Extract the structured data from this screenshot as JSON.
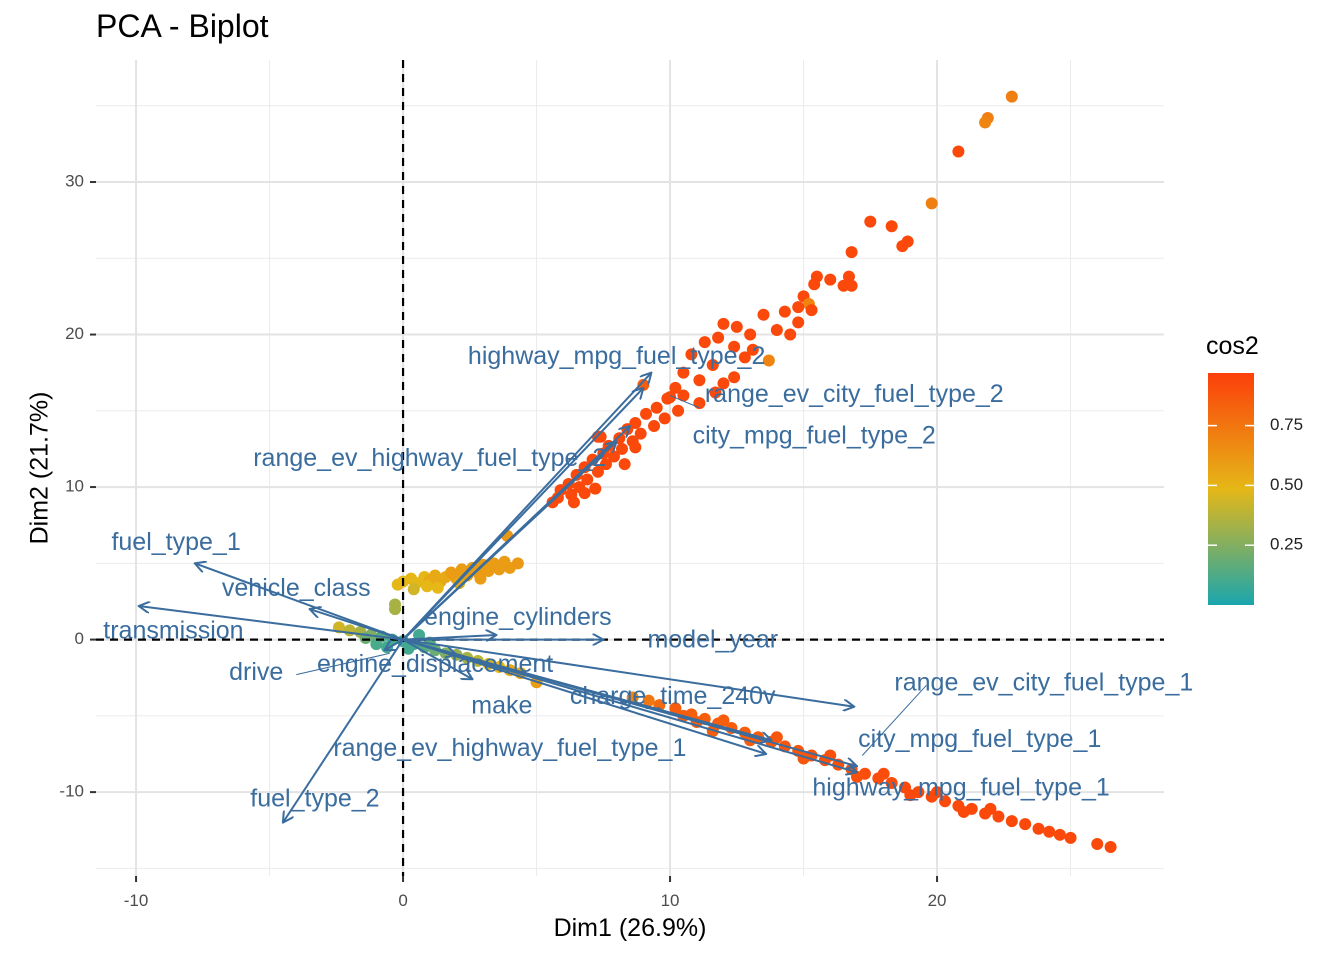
{
  "chart_data": {
    "type": "scatter",
    "title": "PCA - Biplot",
    "xlabel": "Dim1 (26.9%)",
    "ylabel": "Dim2 (21.7%)",
    "xlim": [
      -11.5,
      28.5
    ],
    "ylim": [
      -15.5,
      38.0
    ],
    "xticks": [
      -10,
      0,
      10,
      20
    ],
    "yticks": [
      -10,
      0,
      10,
      20,
      30
    ],
    "grid": true,
    "legend": {
      "title": "cos2",
      "position": "right",
      "ticks": [
        0.25,
        0.5,
        0.75
      ],
      "tick_labels": [
        "0.25",
        "0.50",
        "0.75"
      ],
      "range": [
        0.0,
        0.97
      ],
      "colors": [
        "#1aa6ae",
        "#e5b717",
        "#fc3f0a"
      ]
    },
    "reference_lines": {
      "x": 0,
      "y": 0,
      "style": "dashed"
    },
    "arrow_color": "#3a6d9e",
    "variables": [
      {
        "name": "highway_mpg_fuel_type_2",
        "x": 9.3,
        "y": 17.5,
        "label_x": 8.0,
        "label_y": 18.5
      },
      {
        "name": "range_ev_city_fuel_type_2",
        "x": 9.0,
        "y": 16.5,
        "label_x": 16.9,
        "label_y": 16.0
      },
      {
        "name": "city_mpg_fuel_type_2",
        "x": 8.5,
        "y": 14.0,
        "label_x": 15.4,
        "label_y": 13.3
      },
      {
        "name": "range_ev_highway_fuel_type_2",
        "x": 8.0,
        "y": 13.0,
        "label_x": 1.0,
        "label_y": 11.8
      },
      {
        "name": "fuel_type_1",
        "x": -7.8,
        "y": 5.0,
        "label_x": -8.5,
        "label_y": 6.3
      },
      {
        "name": "vehicle_class",
        "x": -3.5,
        "y": 2.0,
        "label_x": -4.0,
        "label_y": 3.3
      },
      {
        "name": "transmission",
        "x": -9.9,
        "y": 2.2,
        "label_x": -8.6,
        "label_y": 0.5
      },
      {
        "name": "engine_cylinders",
        "x": 3.5,
        "y": 0.3,
        "label_x": 4.3,
        "label_y": 1.4
      },
      {
        "name": "model_year",
        "x": 7.5,
        "y": 0.0,
        "label_x": 11.6,
        "label_y": -0.1
      },
      {
        "name": "drive",
        "x": -0.7,
        "y": -0.7,
        "label_x": -5.5,
        "label_y": -2.2
      },
      {
        "name": "engine_displacement",
        "x": 2.0,
        "y": -1.0,
        "label_x": 1.2,
        "label_y": -1.7
      },
      {
        "name": "make",
        "x": 2.6,
        "y": -2.6,
        "label_x": 3.7,
        "label_y": -4.4
      },
      {
        "name": "charge_time_240v",
        "x": 13.8,
        "y": -6.6,
        "label_x": 10.1,
        "label_y": -3.8
      },
      {
        "name": "range_ev_city_fuel_type_1",
        "x": 16.9,
        "y": -4.4,
        "label_x": 24.0,
        "label_y": -2.9
      },
      {
        "name": "city_mpg_fuel_type_1",
        "x": 17.0,
        "y": -8.3,
        "label_x": 21.6,
        "label_y": -6.6
      },
      {
        "name": "range_ev_highway_fuel_type_1",
        "x": 13.6,
        "y": -7.5,
        "label_x": 4.0,
        "label_y": -7.2
      },
      {
        "name": "highway_mpg_fuel_type_1",
        "x": 17.0,
        "y": -8.7,
        "label_x": 20.9,
        "label_y": -9.8
      },
      {
        "name": "fuel_type_2",
        "x": -4.5,
        "y": -12.0,
        "label_x": -3.3,
        "label_y": -10.5
      }
    ],
    "leader_lines": [
      {
        "name": "range_ev_city_fuel_type_2",
        "from": [
          11.1,
          15.2
        ],
        "to": [
          10.0,
          16.0
        ]
      },
      {
        "name": "drive",
        "from": [
          -4.0,
          -2.3
        ],
        "to": [
          -0.5,
          -0.9
        ]
      },
      {
        "name": "range_ev_city_fuel_type_1",
        "from": [
          19.6,
          -3.0
        ],
        "to": [
          17.2,
          -7.6
        ]
      }
    ],
    "series": [
      {
        "cluster": "upper-arm",
        "points": [
          [
            22.8,
            35.6,
            0.72
          ],
          [
            21.9,
            34.2,
            0.72
          ],
          [
            21.8,
            33.9,
            0.7
          ],
          [
            20.8,
            32.0,
            0.93
          ],
          [
            19.8,
            28.6,
            0.72
          ],
          [
            17.5,
            27.4,
            0.93
          ],
          [
            18.3,
            27.1,
            0.93
          ],
          [
            18.9,
            26.1,
            0.93
          ],
          [
            18.7,
            25.8,
            0.93
          ],
          [
            16.8,
            25.4,
            0.93
          ],
          [
            15.5,
            23.8,
            0.93
          ],
          [
            16.0,
            23.6,
            0.93
          ],
          [
            16.7,
            23.8,
            0.93
          ],
          [
            15.4,
            23.3,
            0.93
          ],
          [
            16.5,
            23.2,
            0.93
          ],
          [
            16.8,
            23.2,
            0.93
          ],
          [
            15.0,
            22.5,
            0.93
          ],
          [
            15.2,
            22.0,
            0.7
          ],
          [
            14.8,
            21.8,
            0.93
          ],
          [
            14.3,
            21.5,
            0.93
          ],
          [
            15.3,
            21.6,
            0.93
          ],
          [
            13.5,
            21.3,
            0.93
          ],
          [
            14.8,
            20.8,
            0.93
          ],
          [
            12.0,
            20.7,
            0.93
          ],
          [
            12.5,
            20.5,
            0.93
          ],
          [
            14.0,
            20.3,
            0.93
          ],
          [
            13.0,
            20.0,
            0.93
          ],
          [
            14.5,
            20.0,
            0.93
          ],
          [
            11.8,
            19.8,
            0.93
          ],
          [
            11.3,
            19.5,
            0.93
          ],
          [
            12.4,
            19.2,
            0.93
          ],
          [
            13.1,
            19.0,
            0.93
          ],
          [
            10.8,
            18.7,
            0.93
          ],
          [
            12.8,
            18.5,
            0.93
          ],
          [
            13.7,
            18.3,
            0.7
          ],
          [
            11.6,
            18.0,
            0.93
          ],
          [
            10.5,
            17.5,
            0.93
          ],
          [
            12.4,
            17.2,
            0.93
          ],
          [
            11.1,
            17.0,
            0.93
          ],
          [
            12.0,
            16.8,
            0.93
          ],
          [
            10.2,
            16.5,
            0.93
          ],
          [
            11.7,
            16.2,
            0.93
          ],
          [
            10.5,
            16.0,
            0.93
          ],
          [
            9.9,
            15.8,
            0.93
          ],
          [
            11.1,
            15.5,
            0.93
          ],
          [
            9.5,
            15.2,
            0.93
          ],
          [
            10.3,
            15.0,
            0.93
          ],
          [
            9.1,
            14.8,
            0.93
          ],
          [
            9.8,
            14.5,
            0.93
          ],
          [
            8.7,
            14.2,
            0.93
          ],
          [
            9.4,
            14.0,
            0.93
          ],
          [
            8.4,
            13.8,
            0.93
          ],
          [
            8.9,
            13.5,
            0.93
          ],
          [
            8.1,
            13.2,
            0.93
          ],
          [
            8.6,
            13.0,
            0.93
          ],
          [
            7.3,
            13.3,
            0.93
          ],
          [
            7.7,
            12.7,
            0.93
          ],
          [
            8.2,
            12.5,
            0.93
          ],
          [
            7.5,
            12.2,
            0.93
          ],
          [
            7.9,
            12.0,
            0.93
          ],
          [
            7.1,
            11.8,
            0.93
          ],
          [
            7.6,
            11.5,
            0.93
          ],
          [
            6.8,
            11.3,
            0.93
          ],
          [
            7.3,
            11.0,
            0.93
          ],
          [
            6.5,
            10.8,
            0.93
          ],
          [
            6.9,
            10.5,
            0.93
          ],
          [
            6.2,
            10.2,
            0.93
          ],
          [
            6.6,
            10.0,
            0.93
          ],
          [
            5.9,
            9.8,
            0.93
          ],
          [
            6.3,
            9.5,
            0.93
          ],
          [
            5.8,
            9.3,
            0.93
          ],
          [
            6.8,
            9.6,
            0.93
          ],
          [
            5.6,
            9.0,
            0.93
          ],
          [
            6.4,
            9.0,
            0.93
          ],
          [
            7.2,
            9.9,
            0.93
          ],
          [
            8.3,
            11.5,
            0.93
          ],
          [
            8.7,
            12.6,
            0.93
          ],
          [
            10.0,
            15.9,
            0.93
          ],
          [
            9.0,
            16.7,
            0.85
          ],
          [
            7.4,
            13.3,
            0.93
          ]
        ]
      },
      {
        "cluster": "center-cluster",
        "points": [
          [
            -0.2,
            3.6,
            0.5
          ],
          [
            0.0,
            3.8,
            0.5
          ],
          [
            0.3,
            4.0,
            0.5
          ],
          [
            0.5,
            3.7,
            0.5
          ],
          [
            0.8,
            4.1,
            0.5
          ],
          [
            1.0,
            3.9,
            0.55
          ],
          [
            1.2,
            4.2,
            0.55
          ],
          [
            1.4,
            3.8,
            0.55
          ],
          [
            1.6,
            4.1,
            0.55
          ],
          [
            1.8,
            4.4,
            0.6
          ],
          [
            2.0,
            4.0,
            0.6
          ],
          [
            2.2,
            4.6,
            0.6
          ],
          [
            2.4,
            4.2,
            0.6
          ],
          [
            2.6,
            4.7,
            0.6
          ],
          [
            2.8,
            4.4,
            0.6
          ],
          [
            3.0,
            4.9,
            0.6
          ],
          [
            3.2,
            4.5,
            0.6
          ],
          [
            3.4,
            5.0,
            0.6
          ],
          [
            3.6,
            4.6,
            0.6
          ],
          [
            3.8,
            5.1,
            0.6
          ],
          [
            4.0,
            4.7,
            0.6
          ],
          [
            4.3,
            5.0,
            0.62
          ],
          [
            3.9,
            6.8,
            0.62
          ],
          [
            0.4,
            3.3,
            0.45
          ],
          [
            0.9,
            3.5,
            0.5
          ],
          [
            -0.3,
            2.3,
            0.35
          ],
          [
            -0.3,
            2.0,
            0.35
          ],
          [
            1.3,
            3.4,
            0.5
          ],
          [
            2.1,
            3.7,
            0.55
          ],
          [
            2.9,
            4.0,
            0.6
          ]
        ]
      },
      {
        "cluster": "origin-cluster",
        "points": [
          [
            -2.4,
            0.8,
            0.45
          ],
          [
            -2.0,
            0.6,
            0.4
          ],
          [
            -1.6,
            0.5,
            0.35
          ],
          [
            -1.2,
            0.3,
            0.25
          ],
          [
            -0.8,
            0.2,
            0.15
          ],
          [
            -0.4,
            0.0,
            0.1
          ],
          [
            0.0,
            -0.1,
            0.08
          ],
          [
            0.4,
            -0.3,
            0.1
          ],
          [
            0.8,
            -0.5,
            0.15
          ],
          [
            1.2,
            -0.7,
            0.2
          ],
          [
            1.6,
            -0.9,
            0.25
          ],
          [
            2.0,
            -1.0,
            0.3
          ],
          [
            2.4,
            -1.2,
            0.35
          ],
          [
            2.8,
            -1.4,
            0.4
          ],
          [
            3.2,
            -1.6,
            0.45
          ],
          [
            3.6,
            -1.8,
            0.5
          ],
          [
            4.0,
            -2.0,
            0.55
          ],
          [
            4.4,
            -2.2,
            0.55
          ],
          [
            5.0,
            -2.8,
            0.6
          ],
          [
            -1.0,
            -0.3,
            0.12
          ],
          [
            -0.6,
            -0.5,
            0.1
          ],
          [
            0.2,
            -0.6,
            0.1
          ],
          [
            0.6,
            0.3,
            0.1
          ],
          [
            1.0,
            -0.2,
            0.15
          ],
          [
            -1.4,
            0.1,
            0.2
          ]
        ]
      },
      {
        "cluster": "lower-arm",
        "points": [
          [
            10.2,
            -4.5,
            0.85
          ],
          [
            10.8,
            -4.9,
            0.85
          ],
          [
            11.3,
            -5.2,
            0.85
          ],
          [
            11.8,
            -5.5,
            0.85
          ],
          [
            12.3,
            -5.8,
            0.85
          ],
          [
            12.8,
            -6.1,
            0.85
          ],
          [
            13.3,
            -6.4,
            0.85
          ],
          [
            13.8,
            -6.7,
            0.88
          ],
          [
            14.3,
            -7.0,
            0.88
          ],
          [
            14.8,
            -7.3,
            0.88
          ],
          [
            15.3,
            -7.6,
            0.9
          ],
          [
            15.8,
            -7.9,
            0.9
          ],
          [
            16.3,
            -8.2,
            0.9
          ],
          [
            16.8,
            -8.5,
            0.9
          ],
          [
            17.3,
            -8.8,
            0.92
          ],
          [
            17.8,
            -9.1,
            0.92
          ],
          [
            18.3,
            -9.4,
            0.92
          ],
          [
            18.8,
            -9.7,
            0.93
          ],
          [
            19.3,
            -10.0,
            0.93
          ],
          [
            19.8,
            -10.3,
            0.93
          ],
          [
            20.3,
            -10.6,
            0.93
          ],
          [
            20.8,
            -10.9,
            0.93
          ],
          [
            21.3,
            -11.1,
            0.93
          ],
          [
            21.8,
            -11.4,
            0.93
          ],
          [
            22.3,
            -11.6,
            0.93
          ],
          [
            22.8,
            -11.9,
            0.93
          ],
          [
            23.3,
            -12.1,
            0.93
          ],
          [
            23.8,
            -12.4,
            0.93
          ],
          [
            24.2,
            -12.6,
            0.93
          ],
          [
            24.6,
            -12.8,
            0.93
          ],
          [
            25.0,
            -13.0,
            0.93
          ],
          [
            26.0,
            -13.4,
            0.93
          ],
          [
            26.5,
            -13.6,
            0.93
          ],
          [
            11.0,
            -5.4,
            0.85
          ],
          [
            12.0,
            -5.3,
            0.85
          ],
          [
            13.0,
            -6.6,
            0.85
          ],
          [
            14.0,
            -6.4,
            0.88
          ],
          [
            15.0,
            -7.8,
            0.88
          ],
          [
            16.0,
            -7.6,
            0.9
          ],
          [
            17.0,
            -9.0,
            0.9
          ],
          [
            18.0,
            -8.8,
            0.92
          ],
          [
            19.0,
            -10.2,
            0.93
          ],
          [
            20.0,
            -10.0,
            0.93
          ],
          [
            21.0,
            -11.3,
            0.93
          ],
          [
            22.0,
            -11.1,
            0.93
          ],
          [
            9.6,
            -4.3,
            0.8
          ],
          [
            9.2,
            -4.0,
            0.75
          ],
          [
            8.6,
            -3.8,
            0.7
          ],
          [
            10.5,
            -5.0,
            0.85
          ],
          [
            11.6,
            -6.0,
            0.85
          ]
        ]
      }
    ]
  }
}
